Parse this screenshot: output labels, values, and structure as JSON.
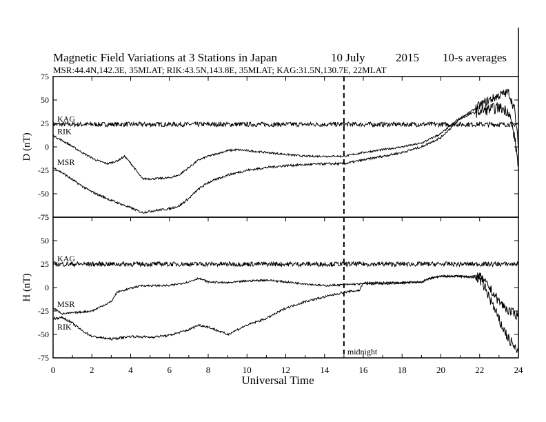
{
  "title": {
    "main": "Magnetic Field Variations at 3 Stations in Japan",
    "date": "10 July",
    "year": "2015",
    "averaging": "10-s averages"
  },
  "subtitle": "MSR:44.4N,142.3E, 35MLAT;  RIK:43.5N,143.8E, 35MLAT;  KAG:31.5N,130.7E, 22MLAT",
  "chart_data": [
    {
      "type": "line",
      "panel": "top",
      "ylabel": "D (nT)",
      "xlim": [
        0,
        24
      ],
      "ylim": [
        -75,
        75
      ],
      "yticks": [
        75,
        50,
        25,
        0,
        -25,
        -50,
        -75
      ],
      "series": [
        {
          "name": "KAG",
          "noise": 2.5,
          "points": [
            [
              0,
              24
            ],
            [
              4,
              24
            ],
            [
              8,
              24
            ],
            [
              12,
              24
            ],
            [
              16,
              24
            ],
            [
              20,
              24
            ],
            [
              24,
              24
            ]
          ]
        },
        {
          "name": "RIK",
          "noise": 1.0,
          "points": [
            [
              0,
              12
            ],
            [
              0.8,
              3
            ],
            [
              1.5,
              -6
            ],
            [
              2.2,
              -14
            ],
            [
              2.8,
              -18
            ],
            [
              3.3,
              -15
            ],
            [
              3.7,
              -10
            ],
            [
              4.1,
              -20
            ],
            [
              4.6,
              -34
            ],
            [
              5.2,
              -34
            ],
            [
              6,
              -33
            ],
            [
              6.5,
              -30
            ],
            [
              7,
              -22
            ],
            [
              7.5,
              -14
            ],
            [
              8,
              -10
            ],
            [
              8.5,
              -7
            ],
            [
              9,
              -4
            ],
            [
              9.5,
              -3
            ],
            [
              10,
              -4
            ],
            [
              11,
              -6
            ],
            [
              12,
              -8
            ],
            [
              13,
              -10
            ],
            [
              14,
              -10
            ],
            [
              15,
              -10
            ],
            [
              16,
              -6
            ],
            [
              17,
              -3
            ],
            [
              18,
              0
            ],
            [
              19,
              4
            ],
            [
              20,
              14
            ],
            [
              20.8,
              28
            ],
            [
              21.5,
              37
            ],
            [
              22,
              44
            ],
            [
              22.5,
              50
            ],
            [
              23,
              55
            ],
            [
              23.5,
              58
            ],
            [
              23.8,
              40
            ],
            [
              24,
              0
            ]
          ]
        },
        {
          "name": "MSR",
          "noise": 1.2,
          "points": [
            [
              0,
              -22
            ],
            [
              0.5,
              -28
            ],
            [
              1,
              -35
            ],
            [
              1.5,
              -42
            ],
            [
              2,
              -48
            ],
            [
              3,
              -57
            ],
            [
              4,
              -65
            ],
            [
              4.6,
              -70
            ],
            [
              5.2,
              -68
            ],
            [
              6,
              -66
            ],
            [
              6.5,
              -63
            ],
            [
              7,
              -55
            ],
            [
              7.5,
              -45
            ],
            [
              8,
              -38
            ],
            [
              9,
              -30
            ],
            [
              10,
              -25
            ],
            [
              11,
              -22
            ],
            [
              12,
              -20
            ],
            [
              13,
              -19
            ],
            [
              14,
              -18
            ],
            [
              15,
              -18
            ],
            [
              16,
              -14
            ],
            [
              17,
              -10
            ],
            [
              18,
              -6
            ],
            [
              19,
              0
            ],
            [
              20,
              10
            ],
            [
              20.5,
              20
            ],
            [
              21,
              30
            ],
            [
              21.5,
              35
            ],
            [
              22,
              38
            ],
            [
              22.5,
              40
            ],
            [
              23,
              42
            ],
            [
              23.5,
              38
            ],
            [
              23.8,
              10
            ],
            [
              24,
              -20
            ]
          ]
        }
      ]
    },
    {
      "type": "line",
      "panel": "bottom",
      "ylabel": "H (nT)",
      "xlabel": "Universal Time",
      "xlim": [
        0,
        24
      ],
      "ylim": [
        -75,
        75
      ],
      "yticks": [
        75,
        50,
        25,
        0,
        -25,
        -50,
        -75
      ],
      "xticks": [
        0,
        2,
        4,
        6,
        8,
        10,
        12,
        14,
        16,
        18,
        20,
        22,
        24
      ],
      "series": [
        {
          "name": "KAG",
          "noise": 2.5,
          "points": [
            [
              0,
              25
            ],
            [
              4,
              25
            ],
            [
              8,
              25
            ],
            [
              12,
              25
            ],
            [
              16,
              25
            ],
            [
              20,
              25
            ],
            [
              24,
              25
            ]
          ]
        },
        {
          "name": "MSR",
          "noise": 1.0,
          "points": [
            [
              0,
              -22
            ],
            [
              0.5,
              -28
            ],
            [
              1,
              -27
            ],
            [
              2,
              -25
            ],
            [
              2.5,
              -20
            ],
            [
              3,
              -15
            ],
            [
              3.3,
              -5
            ],
            [
              3.8,
              -2
            ],
            [
              4.5,
              2
            ],
            [
              5,
              2
            ],
            [
              6,
              2
            ],
            [
              7,
              6
            ],
            [
              7.5,
              10
            ],
            [
              8,
              6
            ],
            [
              9,
              5
            ],
            [
              10,
              7
            ],
            [
              11,
              8
            ],
            [
              12,
              6
            ],
            [
              13,
              4
            ],
            [
              14,
              2
            ],
            [
              15,
              3
            ],
            [
              16,
              4
            ],
            [
              17,
              4
            ],
            [
              18,
              5
            ],
            [
              19,
              6
            ],
            [
              19.5,
              10
            ],
            [
              20,
              12
            ],
            [
              21,
              12
            ],
            [
              22,
              12
            ],
            [
              22.5,
              0
            ],
            [
              23,
              -15
            ],
            [
              23.5,
              -25
            ],
            [
              24,
              -30
            ]
          ]
        },
        {
          "name": "RIK",
          "noise": 1.2,
          "points": [
            [
              0,
              -33
            ],
            [
              0.5,
              -32
            ],
            [
              1,
              -38
            ],
            [
              1.5,
              -46
            ],
            [
              2,
              -52
            ],
            [
              3,
              -55
            ],
            [
              4,
              -52
            ],
            [
              5,
              -53
            ],
            [
              6,
              -51
            ],
            [
              7,
              -45
            ],
            [
              7.5,
              -40
            ],
            [
              8,
              -42
            ],
            [
              9,
              -50
            ],
            [
              10,
              -40
            ],
            [
              11,
              -33
            ],
            [
              12,
              -22
            ],
            [
              13,
              -15
            ],
            [
              14,
              -10
            ],
            [
              15,
              -5
            ],
            [
              15.8,
              -3
            ],
            [
              16,
              5
            ],
            [
              17,
              5
            ],
            [
              18,
              5
            ],
            [
              19,
              6
            ],
            [
              19.5,
              10
            ],
            [
              20,
              12
            ],
            [
              21,
              12
            ],
            [
              22,
              10
            ],
            [
              22.5,
              -10
            ],
            [
              23,
              -35
            ],
            [
              23.5,
              -55
            ],
            [
              24,
              -70
            ]
          ]
        }
      ]
    }
  ],
  "annotations": {
    "midnight_label": "midnight",
    "midnight_time": 15
  },
  "colors": {
    "ink": "#000000",
    "background": "#ffffff"
  }
}
